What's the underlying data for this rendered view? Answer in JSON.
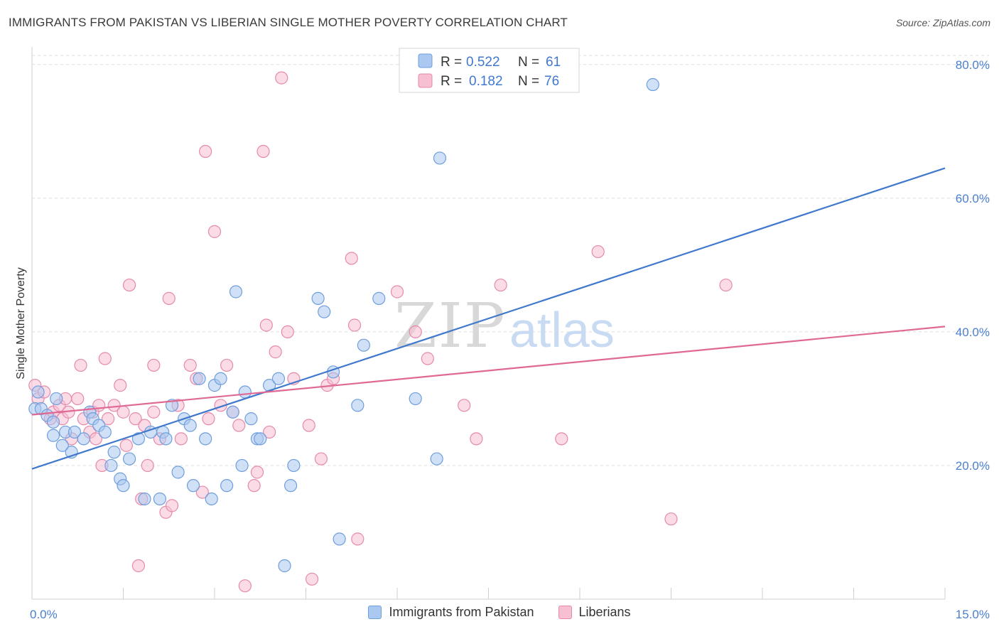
{
  "title": "IMMIGRANTS FROM PAKISTAN VS LIBERIAN SINGLE MOTHER POVERTY CORRELATION CHART",
  "source": "Source: ZipAtlas.com",
  "watermark": {
    "zip": "ZIP",
    "atlas": "atlas"
  },
  "colors": {
    "blue_fill": "#aac8f0",
    "blue_stroke": "#6f9edc",
    "blue_line": "#3f78cc",
    "pink_fill": "#f7bfd2",
    "pink_stroke": "#e58aac",
    "pink_line": "#e06894",
    "tick_text": "#4a7fd0",
    "grid": "#dcdcdc"
  },
  "chart_data": {
    "type": "scatter",
    "title": "IMMIGRANTS FROM PAKISTAN VS LIBERIAN SINGLE MOTHER POVERTY CORRELATION CHART",
    "xlabel": "",
    "ylabel": "Single Mother Poverty",
    "xlim": [
      0,
      15
    ],
    "ylim": [
      0,
      82
    ],
    "x_tick_labels": [
      "0.0%",
      "15.0%"
    ],
    "y_ticks": [
      20,
      40,
      60,
      80
    ],
    "y_tick_labels": [
      "20.0%",
      "40.0%",
      "60.0%",
      "80.0%"
    ],
    "grid": true,
    "legend_position": "top-center",
    "legend": [
      {
        "r_label": "R =",
        "r_value": "0.522",
        "n_label": "N =",
        "n_value": "61"
      },
      {
        "r_label": "R =",
        "r_value": "0.182",
        "n_label": "N =",
        "n_value": "76"
      }
    ],
    "series": [
      {
        "name": "Immigrants from Pakistan",
        "color": "#aac8f0",
        "trend": {
          "x0": 0,
          "y0": 19.5,
          "x1": 15,
          "y1": 64.5
        },
        "points": [
          [
            0.05,
            28.5
          ],
          [
            0.15,
            28.5
          ],
          [
            0.25,
            27.5
          ],
          [
            0.35,
            26.5
          ],
          [
            0.4,
            30
          ],
          [
            0.35,
            24.5
          ],
          [
            0.5,
            23
          ],
          [
            0.55,
            25
          ],
          [
            0.7,
            25
          ],
          [
            0.65,
            22
          ],
          [
            0.85,
            24
          ],
          [
            0.95,
            28
          ],
          [
            1.0,
            27
          ],
          [
            1.1,
            26
          ],
          [
            1.2,
            25
          ],
          [
            1.3,
            20
          ],
          [
            1.35,
            22
          ],
          [
            1.45,
            18
          ],
          [
            1.5,
            17
          ],
          [
            1.6,
            21
          ],
          [
            1.75,
            24
          ],
          [
            1.85,
            15
          ],
          [
            1.95,
            25
          ],
          [
            2.1,
            15
          ],
          [
            2.15,
            25
          ],
          [
            2.2,
            24
          ],
          [
            2.3,
            29
          ],
          [
            2.4,
            19
          ],
          [
            2.5,
            27
          ],
          [
            2.6,
            26
          ],
          [
            2.65,
            17
          ],
          [
            2.75,
            33
          ],
          [
            2.85,
            24
          ],
          [
            2.95,
            15
          ],
          [
            3.0,
            32
          ],
          [
            3.1,
            33
          ],
          [
            3.2,
            17
          ],
          [
            3.3,
            28
          ],
          [
            3.35,
            46
          ],
          [
            3.45,
            20
          ],
          [
            3.5,
            31
          ],
          [
            3.6,
            27
          ],
          [
            3.7,
            24
          ],
          [
            3.75,
            24
          ],
          [
            3.9,
            32
          ],
          [
            4.05,
            33
          ],
          [
            4.15,
            5
          ],
          [
            4.25,
            17
          ],
          [
            4.3,
            20
          ],
          [
            4.7,
            45
          ],
          [
            4.8,
            43
          ],
          [
            4.95,
            34
          ],
          [
            5.05,
            9
          ],
          [
            5.35,
            29
          ],
          [
            5.45,
            38
          ],
          [
            5.7,
            45
          ],
          [
            6.3,
            30
          ],
          [
            6.65,
            21
          ],
          [
            6.7,
            66
          ],
          [
            10.2,
            77
          ],
          [
            0.1,
            31
          ]
        ]
      },
      {
        "name": "Liberians",
        "color": "#f7bfd2",
        "trend": {
          "x0": 0,
          "y0": 27.6,
          "x1": 15,
          "y1": 40.8
        },
        "points": [
          [
            0.05,
            32
          ],
          [
            0.1,
            30
          ],
          [
            0.2,
            31
          ],
          [
            0.3,
            27
          ],
          [
            0.35,
            28
          ],
          [
            0.45,
            29
          ],
          [
            0.5,
            27
          ],
          [
            0.55,
            30
          ],
          [
            0.65,
            24
          ],
          [
            0.75,
            30
          ],
          [
            0.8,
            35
          ],
          [
            0.85,
            27
          ],
          [
            0.95,
            25
          ],
          [
            1.0,
            28
          ],
          [
            1.05,
            24
          ],
          [
            1.15,
            20
          ],
          [
            1.2,
            36
          ],
          [
            1.25,
            27
          ],
          [
            1.35,
            29
          ],
          [
            1.45,
            32
          ],
          [
            1.5,
            28
          ],
          [
            1.55,
            23
          ],
          [
            1.6,
            47
          ],
          [
            1.7,
            27
          ],
          [
            1.75,
            5
          ],
          [
            1.8,
            15
          ],
          [
            1.85,
            26
          ],
          [
            1.9,
            20
          ],
          [
            2.0,
            35
          ],
          [
            2.1,
            24
          ],
          [
            2.2,
            13
          ],
          [
            2.25,
            45
          ],
          [
            2.3,
            14
          ],
          [
            2.4,
            29
          ],
          [
            2.45,
            24
          ],
          [
            2.6,
            35
          ],
          [
            2.7,
            33
          ],
          [
            2.8,
            16
          ],
          [
            2.85,
            67
          ],
          [
            2.9,
            27
          ],
          [
            3.0,
            55
          ],
          [
            3.1,
            29
          ],
          [
            3.2,
            35
          ],
          [
            3.4,
            26
          ],
          [
            3.5,
            2
          ],
          [
            3.65,
            17
          ],
          [
            3.7,
            19
          ],
          [
            3.8,
            67
          ],
          [
            3.85,
            41
          ],
          [
            3.9,
            25
          ],
          [
            4.0,
            37
          ],
          [
            4.1,
            78
          ],
          [
            4.2,
            40
          ],
          [
            4.3,
            33
          ],
          [
            4.55,
            26
          ],
          [
            4.6,
            3
          ],
          [
            4.75,
            21
          ],
          [
            4.85,
            32
          ],
          [
            4.95,
            33
          ],
          [
            5.25,
            51
          ],
          [
            5.3,
            41
          ],
          [
            5.35,
            9
          ],
          [
            6.0,
            46
          ],
          [
            6.3,
            40
          ],
          [
            6.5,
            36
          ],
          [
            7.1,
            29
          ],
          [
            7.3,
            24
          ],
          [
            7.7,
            47
          ],
          [
            8.7,
            24
          ],
          [
            9.3,
            52
          ],
          [
            10.5,
            12
          ],
          [
            11.4,
            47
          ],
          [
            0.6,
            28
          ],
          [
            1.1,
            29
          ],
          [
            2.0,
            28
          ],
          [
            3.3,
            28
          ]
        ]
      }
    ]
  }
}
